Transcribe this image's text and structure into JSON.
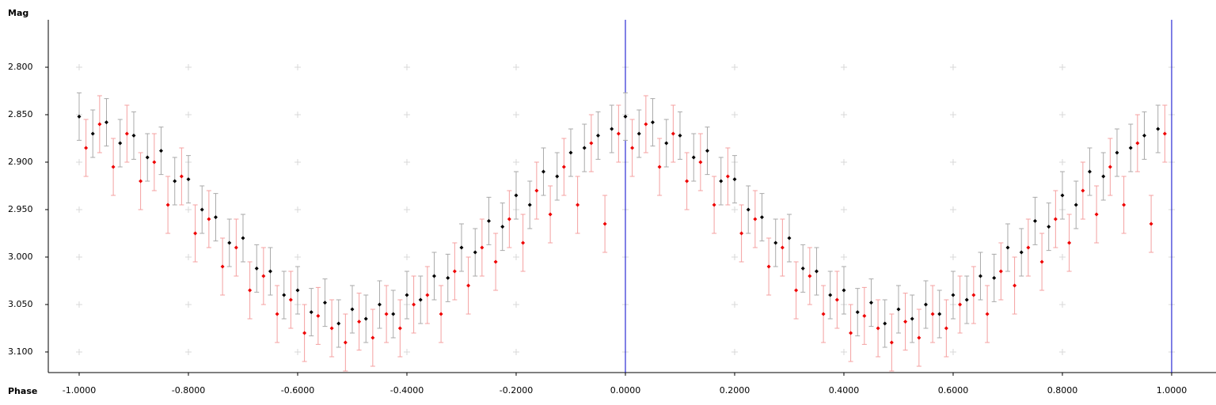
{
  "chart_data": {
    "type": "scatter",
    "y_label": "Mag",
    "x_label": "Phase",
    "xlim": [
      -1.0565,
      1.0812
    ],
    "ylim": [
      2.75,
      3.1217
    ],
    "y_inverted": true,
    "xticks": [
      {
        "value": -1.0,
        "label": "-1.0000"
      },
      {
        "value": -0.8,
        "label": "-0.8000"
      },
      {
        "value": -0.6,
        "label": "-0.6000"
      },
      {
        "value": -0.4,
        "label": "-0.4000"
      },
      {
        "value": -0.2,
        "label": "-0.2000"
      },
      {
        "value": 0,
        "label": "0.0000"
      },
      {
        "value": 0.2,
        "label": "0.2000"
      },
      {
        "value": 0.4,
        "label": "0.4000"
      },
      {
        "value": 0.6,
        "label": "0.6000"
      },
      {
        "value": 0.8,
        "label": "0.8000"
      },
      {
        "value": 1.0,
        "label": "1.0000"
      }
    ],
    "yticks": [
      {
        "value": 2.8,
        "label": "2.800"
      },
      {
        "value": 2.85,
        "label": "2.850"
      },
      {
        "value": 2.9,
        "label": "2.900"
      },
      {
        "value": 2.95,
        "label": "2.950"
      },
      {
        "value": 3.0,
        "label": "3.000"
      },
      {
        "value": 3.05,
        "label": "3.050"
      },
      {
        "value": 3.1,
        "label": "3.100"
      }
    ],
    "grid": true,
    "vlines": [
      0,
      1
    ],
    "vline_color": "#0000cc",
    "repeat_period": 1,
    "series": [
      {
        "color": "#000000",
        "error_color": "#aaaaaa",
        "error": 0.025,
        "x": [
          0,
          0.025,
          0.05,
          0.075,
          0.1,
          0.125,
          0.15,
          0.175,
          0.2,
          0.225,
          0.25,
          0.275,
          0.3,
          0.325,
          0.35,
          0.375,
          0.4,
          0.425,
          0.45,
          0.475,
          0.5,
          0.525,
          0.55,
          0.575,
          0.6,
          0.625,
          0.65,
          0.675,
          0.7,
          0.725,
          0.75,
          0.775,
          0.8,
          0.825,
          0.85,
          0.875,
          0.9,
          0.925,
          0.95,
          0.975
        ],
        "values": [
          2.852,
          2.87,
          2.858,
          2.88,
          2.872,
          2.895,
          2.888,
          2.92,
          2.918,
          2.95,
          2.958,
          2.985,
          2.98,
          3.012,
          3.015,
          3.04,
          3.035,
          3.058,
          3.048,
          3.07,
          3.055,
          3.065,
          3.05,
          3.06,
          3.04,
          3.045,
          3.02,
          3.022,
          2.99,
          2.995,
          2.962,
          2.968,
          2.935,
          2.945,
          2.91,
          2.915,
          2.89,
          2.885,
          2.872,
          2.865
        ]
      },
      {
        "color": "#ee0000",
        "error_color": "#f4a0a0",
        "error": 0.03,
        "x": [
          0.0125,
          0.0375,
          0.0625,
          0.0875,
          0.1125,
          0.1375,
          0.1625,
          0.1875,
          0.2125,
          0.2375,
          0.2625,
          0.2875,
          0.3125,
          0.3375,
          0.3625,
          0.3875,
          0.4125,
          0.4375,
          0.4625,
          0.4875,
          0.5125,
          0.5375,
          0.5625,
          0.5875,
          0.6125,
          0.6375,
          0.6625,
          0.6875,
          0.7125,
          0.7375,
          0.7625,
          0.7875,
          0.8125,
          0.8375,
          0.8625,
          0.8875,
          0.9125,
          0.9375,
          0.9625,
          0.9875
        ],
        "values": [
          2.885,
          2.86,
          2.905,
          2.87,
          2.92,
          2.9,
          2.945,
          2.915,
          2.975,
          2.96,
          3.01,
          2.99,
          3.035,
          3.02,
          3.06,
          3.045,
          3.08,
          3.062,
          3.075,
          3.09,
          3.068,
          3.085,
          3.06,
          3.075,
          3.05,
          3.04,
          3.06,
          3.015,
          3.03,
          2.99,
          3.005,
          2.96,
          2.985,
          2.93,
          2.955,
          2.905,
          2.945,
          2.88,
          2.965,
          2.87
        ]
      }
    ]
  }
}
